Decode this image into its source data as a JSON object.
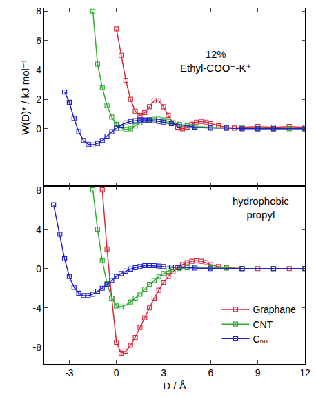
{
  "chart_data": [
    {
      "type": "line",
      "annotation": "12% Ethyl-COO⁻-K⁺",
      "y_label": "W(D)* / kJ mol⁻¹",
      "xlim": [
        -4.6,
        12
      ],
      "xticks": [
        -3,
        0,
        3,
        6,
        9,
        12
      ],
      "ylim": [
        -3.9,
        8.2
      ],
      "yticks": [
        0,
        2,
        4,
        6,
        8
      ],
      "tick_labels": "y",
      "marker": "square-open",
      "line_style": "solid",
      "series": [
        {
          "color": "#d62a3c",
          "x": [
            0.0,
            0.3,
            0.6,
            0.9,
            1.2,
            1.5,
            1.8,
            2.1,
            2.4,
            2.7,
            3.0,
            3.3,
            3.6,
            3.9,
            4.2,
            4.5,
            4.8,
            5.1,
            5.4,
            5.7,
            6.0,
            6.5,
            7.0,
            7.5,
            8.0,
            9.0,
            10.0,
            11.0,
            12.0
          ],
          "values": [
            6.8,
            5.0,
            3.3,
            2.0,
            1.2,
            0.9,
            1.1,
            1.5,
            1.9,
            1.9,
            1.5,
            0.9,
            0.4,
            0.1,
            0.0,
            0.1,
            0.3,
            0.45,
            0.5,
            0.45,
            0.35,
            0.2,
            0.1,
            0.05,
            0.1,
            0.15,
            0.1,
            0.15,
            0.1
          ]
        },
        {
          "color": "#33aa33",
          "x": [
            -1.5,
            -1.2,
            -0.9,
            -0.6,
            -0.3,
            0.0,
            0.3,
            0.6,
            0.9,
            1.2,
            1.5,
            1.8,
            2.1,
            2.4,
            2.7,
            3.0,
            3.3,
            3.6,
            4.0,
            4.5,
            5.0,
            6.0,
            7.0,
            8.0,
            9.0,
            10.0,
            11.0,
            12.0
          ],
          "values": [
            8.0,
            4.4,
            2.8,
            1.6,
            0.8,
            0.3,
            0.05,
            -0.05,
            0.0,
            0.2,
            0.4,
            0.55,
            0.6,
            0.65,
            0.65,
            0.6,
            0.5,
            0.4,
            0.3,
            0.2,
            0.15,
            0.1,
            0.05,
            0.05,
            0.0,
            0.0,
            0.0,
            0.0
          ]
        },
        {
          "color": "#2222cc",
          "x": [
            -3.3,
            -3.0,
            -2.7,
            -2.4,
            -2.1,
            -1.8,
            -1.5,
            -1.2,
            -0.9,
            -0.6,
            -0.3,
            0.0,
            0.3,
            0.6,
            0.9,
            1.2,
            1.5,
            1.8,
            2.1,
            2.4,
            2.7,
            3.0,
            3.5,
            4.0,
            5.0,
            6.0,
            7.0,
            8.0,
            9.0,
            10.0,
            12.0
          ],
          "values": [
            2.5,
            1.8,
            0.7,
            -0.2,
            -0.8,
            -1.05,
            -1.1,
            -1.0,
            -0.8,
            -0.5,
            -0.2,
            0.05,
            0.25,
            0.4,
            0.5,
            0.55,
            0.6,
            0.6,
            0.6,
            0.55,
            0.5,
            0.45,
            0.35,
            0.25,
            0.1,
            0.05,
            0.05,
            0.0,
            0.0,
            0.0,
            0.0
          ]
        }
      ]
    },
    {
      "type": "line",
      "annotation": "hydrophobic propyl",
      "x_label": "D / Å",
      "xlim": [
        -4.6,
        12
      ],
      "xticks": [
        -3,
        0,
        3,
        6,
        9,
        12
      ],
      "ylim": [
        -9.7,
        8.4
      ],
      "yticks": [
        -8,
        -4,
        0,
        4,
        8
      ],
      "legend": "lower right",
      "marker": "square-open",
      "line_style": "solid",
      "series": [
        {
          "name": "Graphane",
          "color": "#d62a3c",
          "x": [
            -0.9,
            -0.6,
            -0.3,
            0.0,
            0.3,
            0.6,
            0.9,
            1.2,
            1.5,
            1.8,
            2.1,
            2.4,
            2.7,
            3.0,
            3.3,
            3.6,
            3.9,
            4.2,
            4.5,
            4.8,
            5.1,
            5.4,
            5.7,
            6.0,
            6.5,
            7.0,
            8.0,
            9.0,
            10.0,
            11.0,
            12.0
          ],
          "values": [
            8.0,
            2.0,
            -3.0,
            -7.5,
            -8.6,
            -8.4,
            -7.8,
            -7.0,
            -6.0,
            -5.0,
            -4.0,
            -3.0,
            -2.2,
            -1.4,
            -0.8,
            -0.3,
            0.1,
            0.4,
            0.6,
            0.75,
            0.8,
            0.75,
            0.6,
            0.4,
            0.2,
            0.1,
            0.0,
            0.0,
            0.0,
            0.0,
            0.0
          ]
        },
        {
          "name": "CNT",
          "color": "#33aa33",
          "x": [
            -1.5,
            -1.2,
            -0.9,
            -0.6,
            -0.3,
            0.0,
            0.3,
            0.6,
            0.9,
            1.2,
            1.5,
            1.8,
            2.1,
            2.4,
            2.7,
            3.0,
            3.3,
            3.6,
            4.0,
            4.5,
            5.0,
            6.0,
            7.0,
            8.0,
            10.0,
            12.0
          ],
          "values": [
            8.0,
            4.0,
            0.8,
            -1.5,
            -3.0,
            -3.8,
            -3.9,
            -3.7,
            -3.4,
            -3.0,
            -2.6,
            -2.1,
            -1.6,
            -1.2,
            -0.8,
            -0.5,
            -0.25,
            -0.1,
            0.0,
            0.1,
            0.15,
            0.1,
            0.05,
            0.0,
            0.0,
            0.0
          ]
        },
        {
          "name": "C₆₀",
          "color": "#2222cc",
          "x": [
            -4.0,
            -3.6,
            -3.3,
            -3.0,
            -2.7,
            -2.4,
            -2.1,
            -1.8,
            -1.5,
            -1.2,
            -0.9,
            -0.6,
            -0.3,
            0.0,
            0.3,
            0.6,
            0.9,
            1.2,
            1.5,
            1.8,
            2.1,
            2.4,
            2.7,
            3.0,
            3.5,
            4.0,
            5.0,
            6.0,
            8.0,
            10.0,
            12.0
          ],
          "values": [
            6.5,
            3.5,
            1.0,
            -0.8,
            -1.9,
            -2.5,
            -2.75,
            -2.75,
            -2.6,
            -2.3,
            -2.0,
            -1.6,
            -1.2,
            -0.8,
            -0.5,
            -0.25,
            -0.05,
            0.1,
            0.2,
            0.3,
            0.3,
            0.3,
            0.25,
            0.2,
            0.15,
            0.1,
            0.05,
            0.0,
            0.0,
            0.0,
            0.0
          ]
        }
      ]
    }
  ]
}
